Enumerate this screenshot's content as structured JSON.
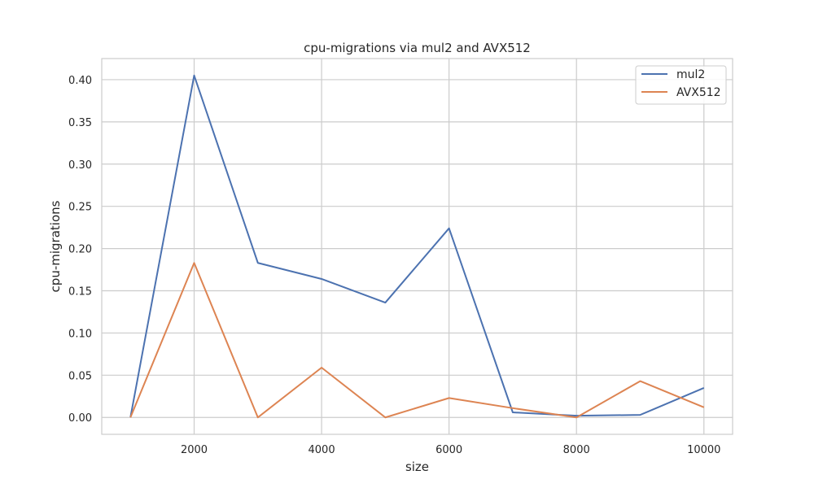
{
  "chart_data": {
    "type": "line",
    "title": "cpu-migrations via mul2 and AVX512",
    "xlabel": "size",
    "ylabel": "cpu-migrations",
    "x": [
      1000,
      2000,
      3000,
      4000,
      5000,
      6000,
      7000,
      8000,
      9000,
      10000
    ],
    "xlim": [
      550,
      10450
    ],
    "ylim": [
      -0.02,
      0.425
    ],
    "xticks": [
      2000,
      4000,
      6000,
      8000,
      10000
    ],
    "xtick_labels": [
      "2000",
      "4000",
      "6000",
      "8000",
      "10000"
    ],
    "yticks": [
      0.0,
      0.05,
      0.1,
      0.15,
      0.2,
      0.25,
      0.3,
      0.35,
      0.4
    ],
    "ytick_labels": [
      "0.00",
      "0.05",
      "0.10",
      "0.15",
      "0.20",
      "0.25",
      "0.30",
      "0.35",
      "0.40"
    ],
    "grid": true,
    "legend_position": "top-right",
    "series": [
      {
        "name": "mul2",
        "color": "#4c72b0",
        "values": [
          0.0,
          0.405,
          0.183,
          0.164,
          0.136,
          0.224,
          0.006,
          0.002,
          0.003,
          0.035
        ]
      },
      {
        "name": "AVX512",
        "color": "#dd8452",
        "values": [
          0.0,
          0.183,
          0.0,
          0.059,
          0.0,
          0.023,
          0.011,
          0.0,
          0.043,
          0.012
        ]
      }
    ]
  }
}
